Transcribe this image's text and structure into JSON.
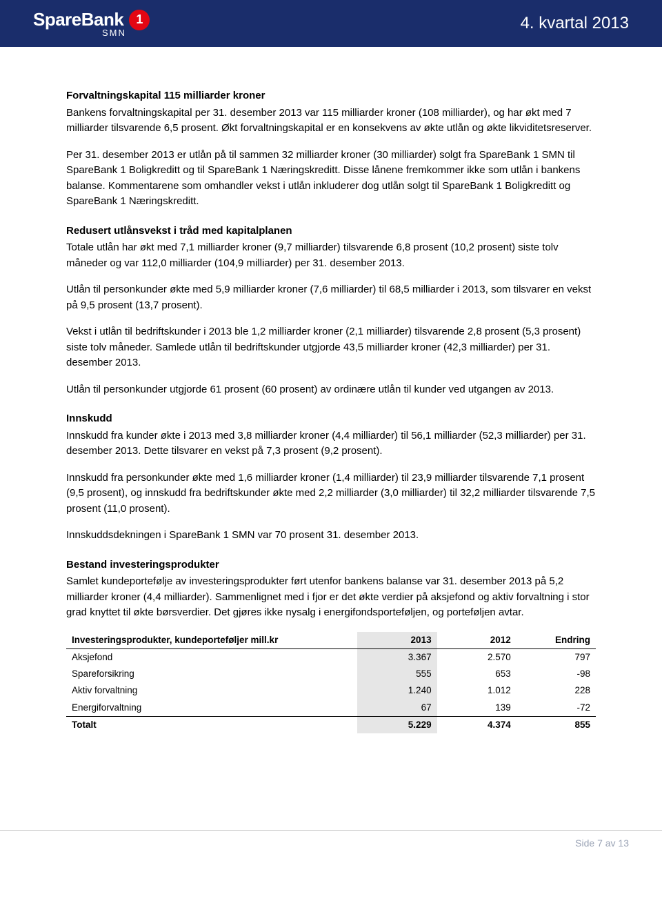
{
  "header": {
    "brand_text": "SpareBank",
    "brand_circle": "1",
    "brand_sub": "SMN",
    "right_text": "4. kvartal 2013"
  },
  "sections": {
    "s1": {
      "heading": "Forvaltningskapital 115 milliarder kroner",
      "p1": "Bankens forvaltningskapital per 31. desember 2013 var 115 milliarder kroner (108 milliarder), og har økt med 7 milliarder tilsvarende 6,5 prosent. Økt forvaltningskapital er en konsekvens av økte utlån og økte likviditetsreserver.",
      "p2": "Per 31. desember 2013 er utlån på til sammen 32 milliarder kroner (30 milliarder) solgt fra SpareBank 1 SMN til SpareBank 1 Boligkreditt og til SpareBank 1 Næringskreditt. Disse lånene fremkommer ikke som utlån i bankens balanse. Kommentarene som omhandler vekst i utlån inkluderer dog utlån solgt til SpareBank 1 Boligkreditt og SpareBank 1 Næringskreditt."
    },
    "s2": {
      "heading": "Redusert utlånsvekst i tråd med kapitalplanen",
      "p1": "Totale utlån har økt med 7,1 milliarder kroner (9,7 milliarder) tilsvarende 6,8 prosent (10,2 prosent) siste tolv måneder og var 112,0 milliarder (104,9 milliarder) per 31. desember 2013.",
      "p2": "Utlån til personkunder økte med 5,9 milliarder kroner (7,6 milliarder) til 68,5 milliarder i 2013, som tilsvarer en vekst på 9,5 prosent (13,7 prosent).",
      "p3": "Vekst i utlån til bedriftskunder i 2013 ble 1,2 milliarder kroner (2,1 milliarder) tilsvarende 2,8 prosent (5,3 prosent) siste tolv måneder. Samlede utlån til bedriftskunder utgjorde 43,5 milliarder kroner (42,3 milliarder) per 31. desember 2013.",
      "p4": "Utlån til personkunder utgjorde 61 prosent (60 prosent) av ordinære utlån til kunder ved utgangen av 2013."
    },
    "s3": {
      "heading": "Innskudd",
      "p1": "Innskudd fra kunder økte i 2013 med 3,8 milliarder kroner (4,4 milliarder) til 56,1 milliarder (52,3 milliarder) per 31. desember 2013. Dette tilsvarer en vekst på 7,3 prosent (9,2 prosent).",
      "p2": "Innskudd fra personkunder økte med 1,6 milliarder kroner (1,4 milliarder) til 23,9 milliarder tilsvarende 7,1 prosent (9,5 prosent), og innskudd fra bedriftskunder økte med 2,2 milliarder (3,0 milliarder) til 32,2 milliarder tilsvarende 7,5 prosent (11,0 prosent).",
      "p3": "Innskuddsdekningen i SpareBank 1 SMN var 70 prosent 31. desember 2013."
    },
    "s4": {
      "heading": "Bestand investeringsprodukter",
      "p1": "Samlet kundeportefølje av investeringsprodukter ført utenfor bankens balanse var 31. desember 2013 på 5,2 milliarder kroner (4,4 milliarder). Sammenlignet med i fjor er det økte verdier på aksjefond og aktiv forvaltning i stor grad knyttet til økte børsverdier. Det gjøres ikke nysalg i energifondsporteføljen, og porteføljen avtar."
    }
  },
  "table": {
    "columns": [
      "Investeringsprodukter, kundeporteføljer mill.kr",
      "2013",
      "2012",
      "Endring"
    ],
    "highlight_col_index": 1,
    "rows": [
      [
        "Aksjefond",
        "3.367",
        "2.570",
        "797"
      ],
      [
        "Spareforsikring",
        "555",
        "653",
        "-98"
      ],
      [
        "Aktiv forvaltning",
        "1.240",
        "1.012",
        "228"
      ],
      [
        "Energiforvaltning",
        "67",
        "139",
        "-72"
      ]
    ],
    "total_row": [
      "Totalt",
      "5.229",
      "4.374",
      "855"
    ]
  },
  "footer": {
    "page_text": "Side 7 av 13"
  }
}
